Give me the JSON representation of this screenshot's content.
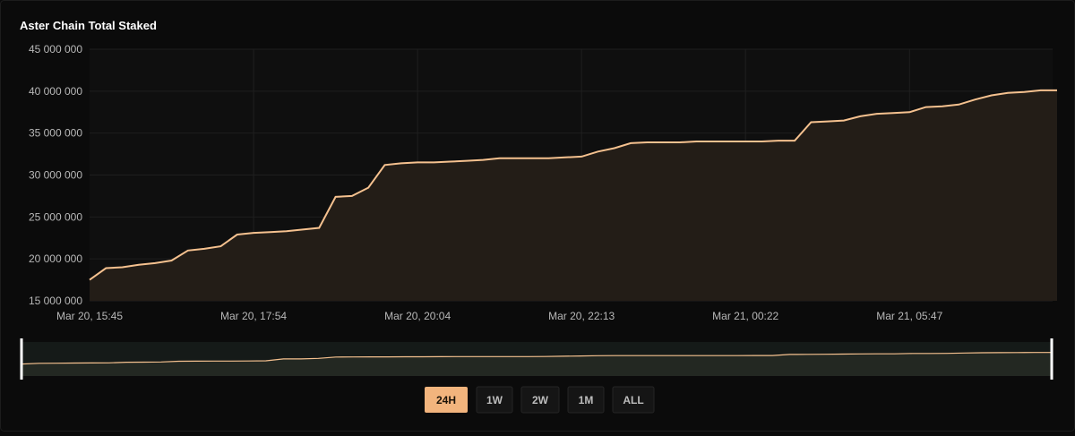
{
  "chart_data": {
    "type": "area",
    "title": "Aster Chain Total Staked",
    "categories": [
      "Mar 20, 15:45",
      null,
      null,
      null,
      null,
      null,
      null,
      null,
      null,
      null,
      "Mar 20, 17:54",
      null,
      null,
      null,
      null,
      null,
      null,
      null,
      null,
      null,
      "Mar 20, 20:04",
      null,
      null,
      null,
      null,
      null,
      null,
      null,
      null,
      null,
      "Mar 20, 22:13",
      null,
      null,
      null,
      null,
      null,
      null,
      null,
      null,
      null,
      "Mar 21, 00:22",
      null,
      null,
      null,
      null,
      null,
      null,
      null,
      null,
      null,
      "Mar 21, 05:47",
      null,
      null,
      null,
      null,
      null,
      null,
      null,
      null,
      null
    ],
    "series": [
      {
        "name": "Total Staked",
        "color": "#f5c18f",
        "values": [
          17500000,
          18900000,
          19000000,
          19300000,
          19500000,
          19800000,
          21000000,
          21200000,
          21500000,
          22900000,
          23100000,
          23200000,
          23300000,
          23500000,
          23700000,
          27400000,
          27500000,
          28500000,
          31200000,
          31400000,
          31500000,
          31500000,
          31600000,
          31700000,
          31800000,
          32000000,
          32000000,
          32000000,
          32000000,
          32100000,
          32200000,
          32800000,
          33200000,
          33800000,
          33900000,
          33900000,
          33900000,
          34000000,
          34000000,
          34000000,
          34000000,
          34000000,
          34100000,
          34100000,
          36300000,
          36400000,
          36500000,
          37000000,
          37300000,
          37400000,
          37500000,
          38100000,
          38200000,
          38400000,
          39000000,
          39500000,
          39800000,
          39900000,
          40100000,
          40100000
        ]
      }
    ],
    "ylim": [
      15000000,
      45000000
    ],
    "yticks": [
      {
        "value": 15000000,
        "label": "15 000 000"
      },
      {
        "value": 20000000,
        "label": "20 000 000"
      },
      {
        "value": 25000000,
        "label": "25 000 000"
      },
      {
        "value": 30000000,
        "label": "30 000 000"
      },
      {
        "value": 35000000,
        "label": "35 000 000"
      },
      {
        "value": 40000000,
        "label": "40 000 000"
      },
      {
        "value": 45000000,
        "label": "45 000 000"
      }
    ],
    "grid": true,
    "fill_color": "#231d17"
  },
  "range_selector": {
    "options": [
      "24H",
      "1W",
      "2W",
      "1M",
      "ALL"
    ],
    "selected": "24H"
  }
}
